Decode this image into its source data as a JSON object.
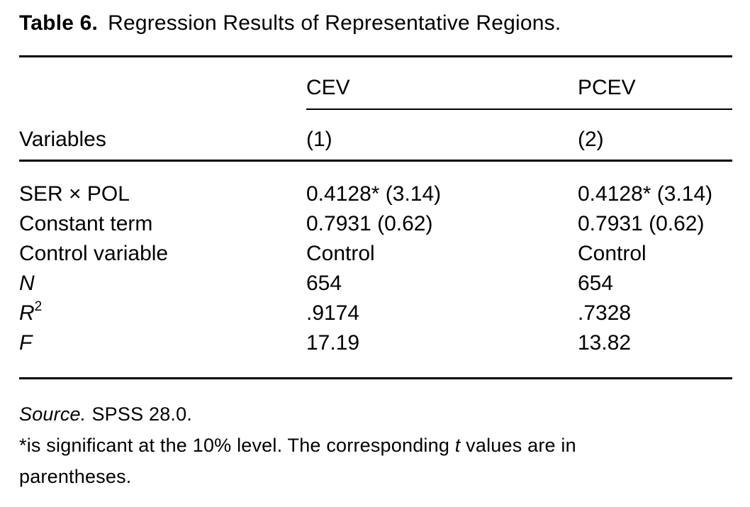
{
  "caption": {
    "label": "Table 6.",
    "title": "Regression Results of Representative Regions."
  },
  "table": {
    "column_groups": [
      "CEV",
      "PCEV"
    ],
    "header": {
      "stub": "Variables",
      "cols": [
        "(1)",
        "(2)"
      ]
    },
    "rows": [
      {
        "variable": "SER × POL",
        "cev": "0.4128* (3.14)",
        "pcev": "0.4128* (3.14)"
      },
      {
        "variable": "Constant term",
        "cev": "0.7931 (0.62)",
        "pcev": "0.7931 (0.62)"
      },
      {
        "variable": "Control variable",
        "cev": "Control",
        "pcev": "Control"
      },
      {
        "variable": "N",
        "cev": "654",
        "pcev": "654"
      },
      {
        "variable": "R",
        "variable_sup": "2",
        "cev": ".9174",
        "pcev": ".7328"
      },
      {
        "variable": "F",
        "cev": "17.19",
        "pcev": "13.82"
      }
    ]
  },
  "footer": {
    "source_label": "Source.",
    "source_text": "SPSS 28.0.",
    "note": {
      "part1": "*is significant at the 10% level. The corresponding ",
      "italic_t": "t",
      "part2": " values are in",
      "line2": "parentheses."
    }
  }
}
